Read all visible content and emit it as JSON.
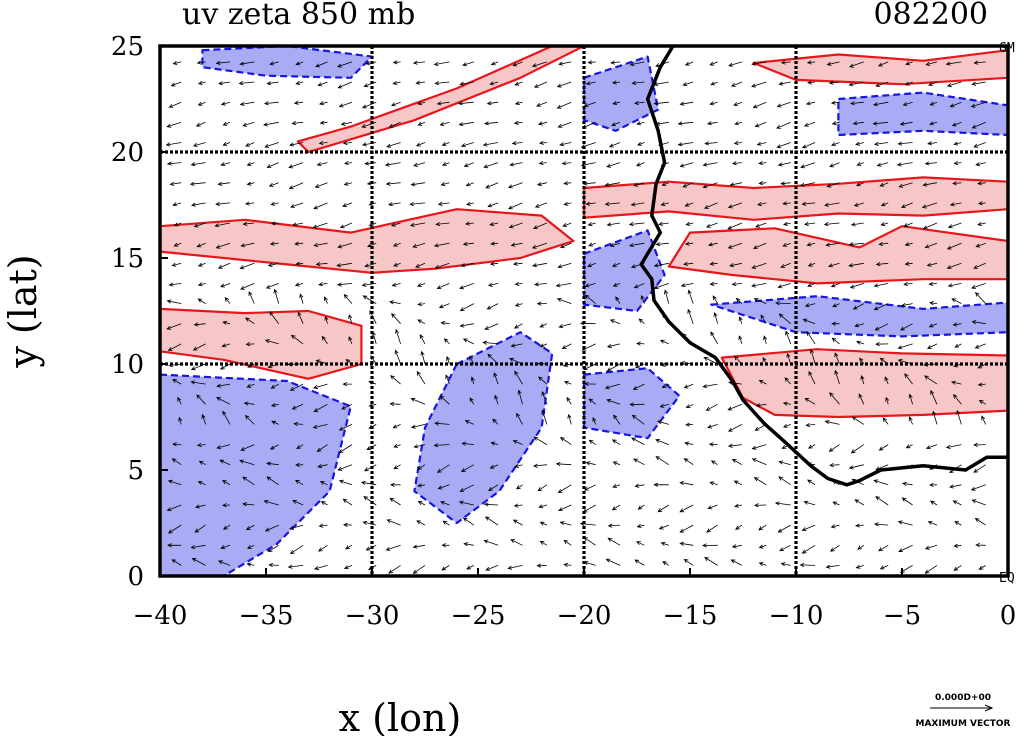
{
  "chart_data": {
    "type": "contour",
    "title": "uv zeta 850 mb",
    "time_label": "082200",
    "xlabel": "x (lon)",
    "ylabel": "y (lat)",
    "xlim": [
      -40,
      0
    ],
    "ylim": [
      0,
      25
    ],
    "x_ticks": [
      -40,
      -35,
      -30,
      -25,
      -20,
      -15,
      -10,
      -5,
      0
    ],
    "y_ticks": [
      0,
      5,
      10,
      15,
      20,
      25
    ],
    "x_tick_labels": [
      "−40",
      "−35",
      "−30",
      "−25",
      "−20",
      "−15",
      "−10",
      "−5",
      "0"
    ],
    "y_tick_labels": [
      "0",
      "5",
      "10",
      "15",
      "20",
      "25"
    ],
    "grid_lon": [
      -30,
      -20,
      -10
    ],
    "grid_lat": [
      10,
      20
    ],
    "corner_labels": {
      "top_right": "GM",
      "bottom_right": "EQ"
    },
    "reference_vector": {
      "value_label": "0.000D+00",
      "caption": "MAXIMUM VECTOR"
    },
    "colors": {
      "positive_fill": "#f7c6c6",
      "positive_line": "#e8161b",
      "negative_fill": "#a9acf5",
      "negative_line": "#1515e6",
      "coastline": "#000000",
      "vectors": "#000000"
    },
    "coastline": [
      [
        -15.8,
        25
      ],
      [
        -16.4,
        24
      ],
      [
        -17.0,
        22.5
      ],
      [
        -16.5,
        21
      ],
      [
        -16.2,
        19.5
      ],
      [
        -16.6,
        18.5
      ],
      [
        -16.8,
        17
      ],
      [
        -16.4,
        16.2
      ],
      [
        -17.3,
        14.7
      ],
      [
        -16.8,
        14
      ],
      [
        -16.7,
        13
      ],
      [
        -16.0,
        12
      ],
      [
        -15.0,
        11
      ],
      [
        -13.8,
        10.3
      ],
      [
        -13.0,
        9.2
      ],
      [
        -12.5,
        8.3
      ],
      [
        -11.5,
        7.2
      ],
      [
        -10.5,
        6.3
      ],
      [
        -9.3,
        5.2
      ],
      [
        -8.5,
        4.6
      ],
      [
        -7.6,
        4.3
      ],
      [
        -7.0,
        4.5
      ],
      [
        -6.0,
        5.0
      ],
      [
        -5.0,
        5.1
      ],
      [
        -4.0,
        5.2
      ],
      [
        -3.0,
        5.1
      ],
      [
        -2.0,
        5.0
      ],
      [
        -1.0,
        5.6
      ],
      [
        0,
        5.6
      ]
    ],
    "positive_regions": [
      [
        [
          -33,
          20
        ],
        [
          -28,
          21.5
        ],
        [
          -23,
          23.5
        ],
        [
          -20,
          25
        ],
        [
          -21.5,
          25
        ],
        [
          -26,
          23
        ],
        [
          -31,
          21.2
        ],
        [
          -33.5,
          20.5
        ]
      ],
      [
        [
          -40,
          16.5
        ],
        [
          -36,
          16.8
        ],
        [
          -31,
          16.2
        ],
        [
          -26,
          17.3
        ],
        [
          -22,
          17
        ],
        [
          -20.5,
          15.8
        ],
        [
          -23,
          15
        ],
        [
          -27,
          14.5
        ],
        [
          -30,
          14.3
        ],
        [
          -34,
          14.7
        ],
        [
          -40,
          15.3
        ]
      ],
      [
        [
          -40,
          12.6
        ],
        [
          -36,
          12.4
        ],
        [
          -33,
          12.5
        ],
        [
          -30.5,
          11.8
        ],
        [
          -30.5,
          10
        ],
        [
          -33,
          9.3
        ],
        [
          -37,
          10.2
        ],
        [
          -40,
          10.6
        ]
      ],
      [
        [
          -20,
          18.3
        ],
        [
          -16,
          18.6
        ],
        [
          -12,
          18.3
        ],
        [
          -8,
          18.5
        ],
        [
          -4,
          18.8
        ],
        [
          0,
          18.6
        ],
        [
          0,
          17.3
        ],
        [
          -4,
          17
        ],
        [
          -8,
          17.1
        ],
        [
          -12,
          16.8
        ],
        [
          -16,
          17.2
        ],
        [
          -20,
          16.9
        ]
      ],
      [
        [
          -15,
          16.2
        ],
        [
          -11,
          16.4
        ],
        [
          -7,
          15.5
        ],
        [
          -5,
          16.5
        ],
        [
          0,
          15.8
        ],
        [
          0,
          14
        ],
        [
          -4,
          14
        ],
        [
          -9,
          13.8
        ],
        [
          -13,
          14.2
        ],
        [
          -16,
          14.6
        ]
      ],
      [
        [
          -13.5,
          10.3
        ],
        [
          -9,
          10.7
        ],
        [
          -5,
          10.5
        ],
        [
          0,
          10.4
        ],
        [
          0,
          7.8
        ],
        [
          -4,
          7.6
        ],
        [
          -8,
          7.5
        ],
        [
          -11,
          7.6
        ],
        [
          -12.5,
          8.4
        ]
      ],
      [
        [
          -12,
          24.2
        ],
        [
          -8,
          24.6
        ],
        [
          -4,
          24.3
        ],
        [
          0,
          24.8
        ],
        [
          0,
          23.5
        ],
        [
          -5,
          23.2
        ],
        [
          -10,
          23.4
        ]
      ]
    ],
    "negative_regions": [
      [
        [
          -40,
          9.5
        ],
        [
          -34,
          9.2
        ],
        [
          -31,
          8
        ],
        [
          -32,
          4
        ],
        [
          -34.5,
          1.5
        ],
        [
          -37,
          0
        ],
        [
          -40,
          0
        ]
      ],
      [
        [
          -26,
          10
        ],
        [
          -23,
          11.5
        ],
        [
          -21.5,
          10.5
        ],
        [
          -22,
          7
        ],
        [
          -24,
          4
        ],
        [
          -26,
          2.5
        ],
        [
          -28,
          4
        ],
        [
          -27.5,
          7
        ]
      ],
      [
        [
          -20,
          9.5
        ],
        [
          -17,
          9.8
        ],
        [
          -15.5,
          8.5
        ],
        [
          -17,
          6.5
        ],
        [
          -20,
          7
        ]
      ],
      [
        [
          -38,
          24.8
        ],
        [
          -34,
          25
        ],
        [
          -30,
          24.5
        ],
        [
          -31,
          23.5
        ],
        [
          -35,
          23.6
        ],
        [
          -38,
          24
        ]
      ],
      [
        [
          -20,
          23.5
        ],
        [
          -17,
          24.5
        ],
        [
          -16.5,
          22
        ],
        [
          -18.5,
          21
        ],
        [
          -20,
          21.5
        ]
      ],
      [
        [
          -20,
          15.2
        ],
        [
          -17,
          16.3
        ],
        [
          -16.2,
          14.2
        ],
        [
          -17.5,
          12.5
        ],
        [
          -20,
          12.8
        ]
      ],
      [
        [
          -8,
          22.5
        ],
        [
          -4,
          22.8
        ],
        [
          0,
          22.2
        ],
        [
          0,
          20.8
        ],
        [
          -4,
          21
        ],
        [
          -8,
          20.8
        ]
      ],
      [
        [
          -14,
          12.8
        ],
        [
          -9,
          13.2
        ],
        [
          -4,
          12.6
        ],
        [
          0,
          12.9
        ],
        [
          0,
          11.5
        ],
        [
          -5,
          11.3
        ],
        [
          -10,
          11.5
        ]
      ]
    ]
  }
}
